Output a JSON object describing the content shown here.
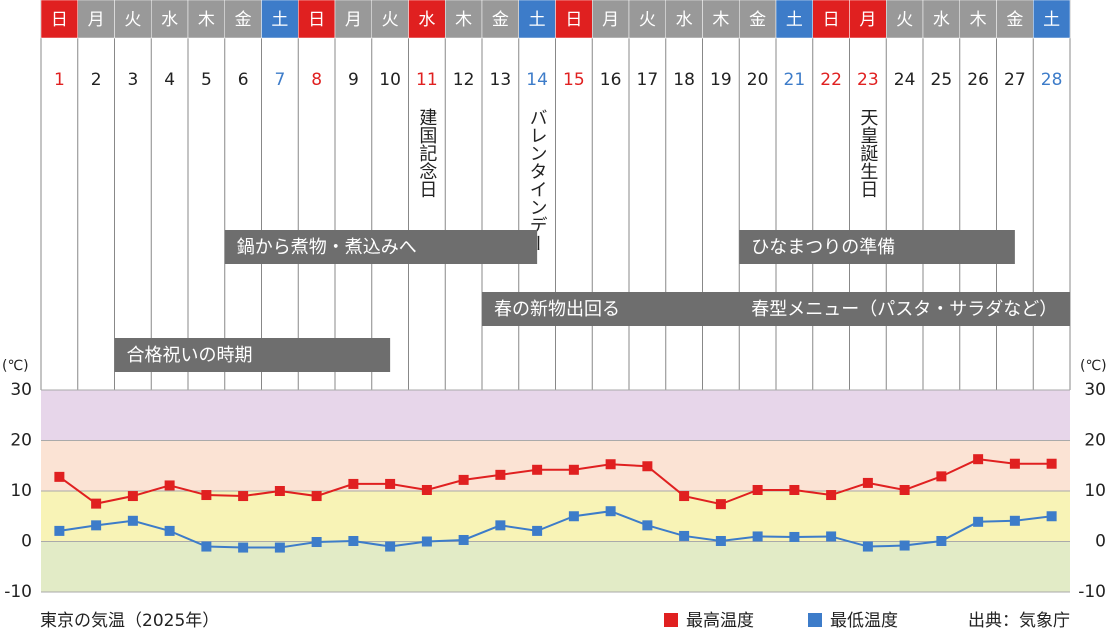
{
  "chart_data": {
    "type": "line",
    "title": "東京の気温（2025年）",
    "source": "出典：気象庁",
    "y_unit": "(℃)",
    "x": [
      1,
      2,
      3,
      4,
      5,
      6,
      7,
      8,
      9,
      10,
      11,
      12,
      13,
      14,
      15,
      16,
      17,
      18,
      19,
      20,
      21,
      22,
      23,
      24,
      25,
      26,
      27,
      28
    ],
    "weekdays": [
      "日",
      "月",
      "火",
      "水",
      "木",
      "金",
      "土",
      "日",
      "月",
      "火",
      "水",
      "木",
      "金",
      "土",
      "日",
      "月",
      "火",
      "水",
      "木",
      "金",
      "土",
      "日",
      "月",
      "火",
      "水",
      "木",
      "金",
      "土"
    ],
    "weekday_colors": [
      "#e02020",
      "#999999",
      "#999999",
      "#999999",
      "#999999",
      "#999999",
      "#3d7cc9",
      "#e02020",
      "#999999",
      "#999999",
      "#e02020",
      "#999999",
      "#999999",
      "#3d7cc9",
      "#e02020",
      "#999999",
      "#999999",
      "#999999",
      "#999999",
      "#999999",
      "#3d7cc9",
      "#e02020",
      "#e02020",
      "#999999",
      "#999999",
      "#999999",
      "#999999",
      "#3d7cc9"
    ],
    "date_colors": [
      "#e02020",
      "#222222",
      "#222222",
      "#222222",
      "#222222",
      "#222222",
      "#3d7cc9",
      "#e02020",
      "#222222",
      "#222222",
      "#e02020",
      "#222222",
      "#222222",
      "#3d7cc9",
      "#e02020",
      "#222222",
      "#222222",
      "#222222",
      "#222222",
      "#222222",
      "#3d7cc9",
      "#e02020",
      "#e02020",
      "#222222",
      "#222222",
      "#222222",
      "#222222",
      "#3d7cc9"
    ],
    "vertical_notes": [
      {
        "x": 11,
        "label": "建国記念日"
      },
      {
        "x": 14,
        "label": "バレンタインデー"
      },
      {
        "x": 23,
        "label": "天皇誕生日"
      }
    ],
    "period_bars": [
      {
        "label": "鍋から煮物・煮込みへ"
      },
      {
        "label": "ひなまつりの準備"
      },
      {
        "label": "春の新物出回る"
      },
      {
        "label": "春型メニュー（パスタ・サラダなど）"
      },
      {
        "label": "合格祝いの時期"
      }
    ],
    "series": [
      {
        "name": "最高温度",
        "color": "#e02020",
        "values": [
          12.8,
          7.5,
          9.0,
          11.1,
          9.2,
          9.0,
          10.0,
          9.0,
          11.4,
          11.4,
          10.2,
          12.2,
          13.2,
          14.2,
          14.2,
          15.3,
          14.9,
          9.0,
          7.4,
          10.2,
          10.2,
          9.2,
          11.6,
          10.2,
          12.9,
          16.3,
          15.4,
          15.4
        ]
      },
      {
        "name": "最低温度",
        "color": "#3d7cc9",
        "values": [
          2.1,
          3.2,
          4.1,
          2.1,
          -1.0,
          -1.2,
          -1.2,
          -0.1,
          0.1,
          -1.0,
          0.0,
          0.3,
          3.2,
          2.1,
          5.0,
          6.0,
          3.2,
          1.1,
          0.1,
          1.0,
          0.9,
          1.0,
          -1.0,
          -0.8,
          0.1,
          3.9,
          4.1,
          5.0
        ]
      }
    ],
    "ylim": [
      -10,
      30
    ],
    "yticks": [
      -10,
      0,
      10,
      20,
      30
    ],
    "y2lim": [
      -10,
      30
    ],
    "y2ticks": [
      -10,
      0,
      10,
      20,
      30
    ],
    "background_bands": [
      {
        "from": -10,
        "to": 0,
        "color": "#e2ebc6"
      },
      {
        "from": 0,
        "to": 10,
        "color": "#f8f3b6"
      },
      {
        "from": 10,
        "to": 20,
        "color": "#fbe3d4"
      },
      {
        "from": 20,
        "to": 30,
        "color": "#e7d6ea"
      }
    ]
  }
}
